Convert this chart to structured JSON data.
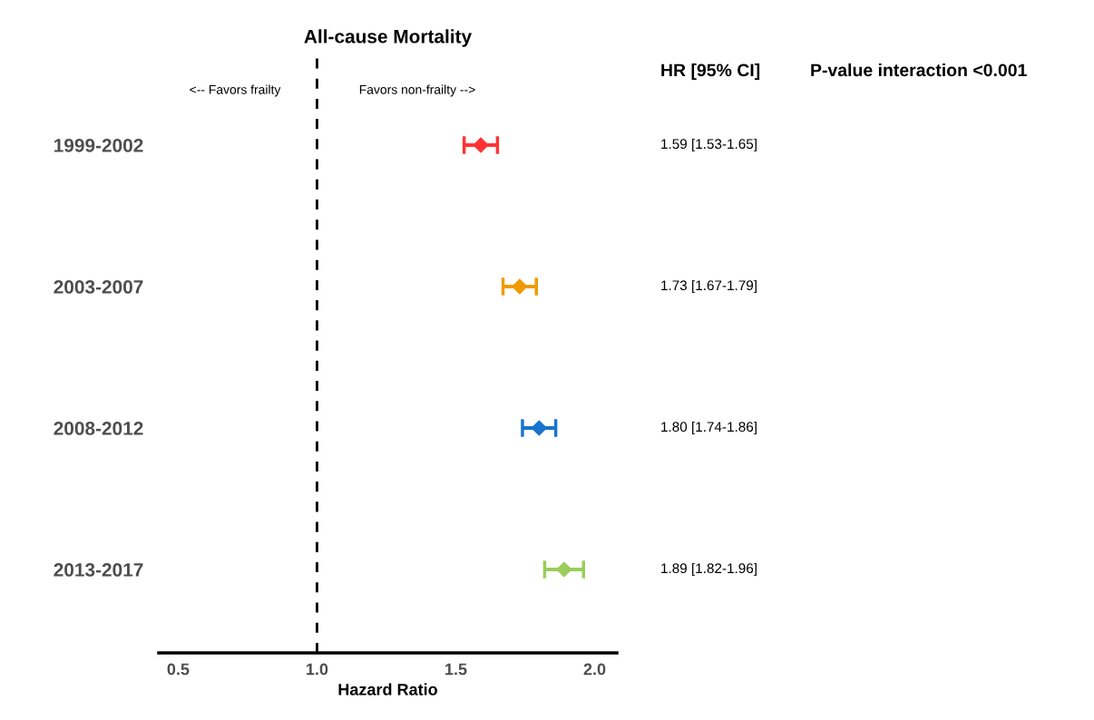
{
  "chart_data": {
    "type": "scatter",
    "orientation": "horizontal",
    "title": "All-cause Mortality",
    "xlabel": "Hazard Ratio",
    "categories": [
      "1999-2002",
      "2003-2007",
      "2008-2012",
      "2013-2017"
    ],
    "values": [
      1.59,
      1.73,
      1.8,
      1.89
    ],
    "errors": [
      [
        1.53,
        1.65
      ],
      [
        1.67,
        1.79
      ],
      [
        1.74,
        1.86
      ],
      [
        1.82,
        1.96
      ]
    ],
    "colors": [
      "#ff3333",
      "#ef9b00",
      "#1874cd",
      "#9acd5a"
    ],
    "value_labels": [
      "1.59 [1.53-1.65]",
      "1.73 [1.67-1.79]",
      "1.80 [1.74-1.86]",
      "1.89 [1.82-1.96]"
    ],
    "marker": "diamond",
    "xlim": [
      0.43,
      2.08
    ],
    "xticks": [
      {
        "value": 0.5,
        "label": "0.5"
      },
      {
        "value": 1.0,
        "label": "1.0"
      },
      {
        "value": 1.5,
        "label": "1.5"
      },
      {
        "value": 2.0,
        "label": "2.0"
      }
    ],
    "ref_lines": [
      {
        "axis": "x",
        "value": 1.0,
        "color": "#000000",
        "line_style": "dashed"
      }
    ],
    "annotations": [
      "<-- Favors frailty",
      "Favors non-frailty -->",
      "HR [95% CI]",
      "P-value interaction <0.001"
    ]
  }
}
